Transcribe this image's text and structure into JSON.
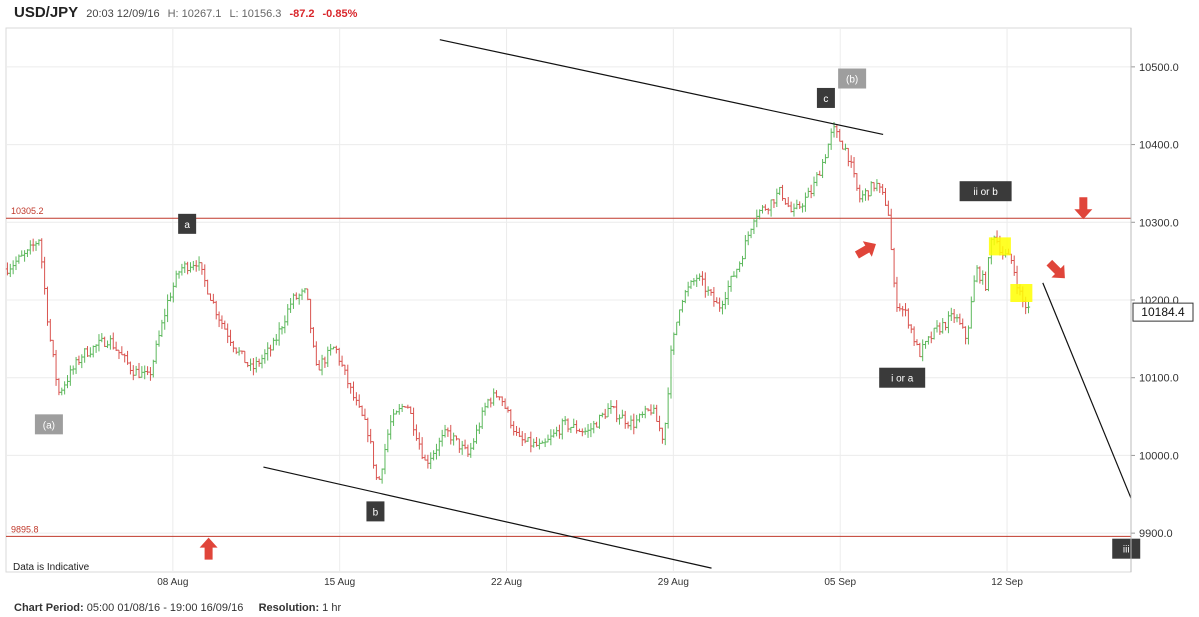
{
  "header": {
    "symbol": "USD/JPY",
    "datetime": "20:03 12/09/16",
    "high": "H: 10267.1",
    "low": "L: 10156.3",
    "change": "-87.2",
    "change_pct": "-0.85%"
  },
  "footer": {
    "period_label": "Chart Period:",
    "period_value": "05:00 01/08/16 - 19:00 16/09/16",
    "resolution_label": "Resolution:",
    "resolution_value": "1 hr"
  },
  "colors": {
    "up": "#5cb85c",
    "down": "#d9534f",
    "level": "#c0392b",
    "arrow": "#e0453a",
    "box": "#3a3a3a",
    "boxGray": "#9e9e9e",
    "highlight": "#ffff00"
  },
  "chart_data": {
    "type": "ohlc",
    "note_text": "Data is Indicative",
    "current_price": "10184.4",
    "y_ticks": [
      "10500.0",
      "10400.0",
      "10300.0",
      "10200.0",
      "10100.0",
      "10000.0",
      "9900.0"
    ],
    "y_tick_values": [
      10500,
      10400,
      10300,
      10200,
      10100,
      10000,
      9900
    ],
    "ylim": [
      9850,
      10550
    ],
    "x_ticks": [
      "08 Aug",
      "15 Aug",
      "22 Aug",
      "29 Aug",
      "05 Sep",
      "12 Sep"
    ],
    "x_tick_days": [
      7,
      14,
      21,
      28,
      35,
      42
    ],
    "xlim_days": [
      0,
      47.2
    ],
    "levels": [
      {
        "label": "10305.2",
        "value": 10305.2
      },
      {
        "label": "9895.8",
        "value": 9895.8
      }
    ],
    "trend_lines": [
      {
        "from": [
          18.2,
          10535
        ],
        "to": [
          36.8,
          10413
        ]
      },
      {
        "from": [
          10.8,
          9985
        ],
        "to": [
          29.6,
          9855
        ]
      },
      {
        "from": [
          43.5,
          10222
        ],
        "to": [
          47.2,
          9945
        ]
      }
    ],
    "wave_labels": [
      {
        "text": "(a)",
        "day": 1.8,
        "value": 10040,
        "style": "gray"
      },
      {
        "text": "a",
        "day": 7.6,
        "value": 10298,
        "style": "dark"
      },
      {
        "text": "b",
        "day": 15.5,
        "value": 9928,
        "style": "dark"
      },
      {
        "text": "c",
        "day": 34.4,
        "value": 10460,
        "style": "dark"
      },
      {
        "text": "(b)",
        "day": 35.5,
        "value": 10485,
        "style": "gray"
      },
      {
        "text": "i or a",
        "day": 37.6,
        "value": 10100,
        "style": "dark"
      },
      {
        "text": "ii or b",
        "day": 41.1,
        "value": 10340,
        "style": "dark"
      },
      {
        "text": "iii",
        "day": 47.0,
        "value": 9880,
        "style": "dark"
      }
    ],
    "highlights": [
      {
        "day": 41.7,
        "value": 10269
      },
      {
        "day": 42.6,
        "value": 10209
      }
    ],
    "arrows": [
      {
        "day": 8.5,
        "value": 9880,
        "dir": "up"
      },
      {
        "day": 45.2,
        "value": 10318,
        "dir": "down"
      },
      {
        "day": 36.1,
        "value": 10265,
        "dir": "up-right"
      },
      {
        "day": 44.1,
        "value": 10238,
        "dir": "down-right"
      }
    ],
    "anchors": [
      [
        0,
        10240
      ],
      [
        0.9,
        10260
      ],
      [
        1.4,
        10280
      ],
      [
        1.8,
        10160
      ],
      [
        2.2,
        10080
      ],
      [
        3.2,
        10130
      ],
      [
        4.3,
        10150
      ],
      [
        5.3,
        10110
      ],
      [
        6.0,
        10100
      ],
      [
        6.8,
        10200
      ],
      [
        7.3,
        10240
      ],
      [
        8.0,
        10250
      ],
      [
        8.9,
        10180
      ],
      [
        9.6,
        10140
      ],
      [
        10.3,
        10110
      ],
      [
        11.2,
        10140
      ],
      [
        12.0,
        10200
      ],
      [
        12.6,
        10210
      ],
      [
        13.0,
        10110
      ],
      [
        13.8,
        10140
      ],
      [
        14.5,
        10080
      ],
      [
        15.2,
        10030
      ],
      [
        15.6,
        9960
      ],
      [
        16.1,
        10040
      ],
      [
        16.8,
        10070
      ],
      [
        17.6,
        9990
      ],
      [
        18.5,
        10030
      ],
      [
        19.4,
        10000
      ],
      [
        20.2,
        10070
      ],
      [
        20.7,
        10080
      ],
      [
        21.5,
        10020
      ],
      [
        22.5,
        10010
      ],
      [
        23.4,
        10040
      ],
      [
        24.4,
        10030
      ],
      [
        25.3,
        10060
      ],
      [
        26.3,
        10040
      ],
      [
        27.1,
        10060
      ],
      [
        27.6,
        10020
      ],
      [
        27.9,
        10130
      ],
      [
        28.3,
        10200
      ],
      [
        29.0,
        10230
      ],
      [
        29.9,
        10190
      ],
      [
        30.8,
        10250
      ],
      [
        31.4,
        10310
      ],
      [
        31.9,
        10320
      ],
      [
        32.5,
        10340
      ],
      [
        33.0,
        10310
      ],
      [
        33.8,
        10340
      ],
      [
        34.3,
        10380
      ],
      [
        34.7,
        10420
      ],
      [
        35.3,
        10390
      ],
      [
        35.8,
        10330
      ],
      [
        36.5,
        10350
      ],
      [
        37.0,
        10320
      ],
      [
        37.3,
        10200
      ],
      [
        37.8,
        10180
      ],
      [
        38.3,
        10130
      ],
      [
        39.0,
        10160
      ],
      [
        39.8,
        10180
      ],
      [
        40.3,
        10150
      ],
      [
        40.7,
        10240
      ],
      [
        41.1,
        10220
      ],
      [
        41.4,
        10290
      ],
      [
        41.8,
        10260
      ],
      [
        42.2,
        10250
      ],
      [
        42.6,
        10200
      ],
      [
        43.0,
        10184
      ]
    ]
  }
}
